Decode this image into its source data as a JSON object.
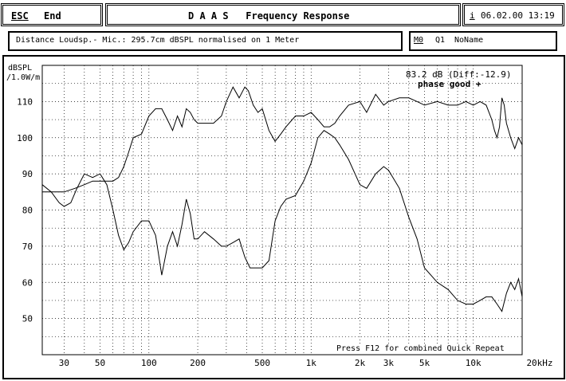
{
  "header": {
    "esc_key": "ESC",
    "end_label": "End",
    "title": "D A A S   Frequency Response",
    "info_key": "i",
    "datetime": "06.02.00 13:19"
  },
  "infobar": {
    "description": "Distance Loudsp.- Mic.: 295.7cm dBSPL normalised on 1 Meter",
    "memory_key": "M0",
    "memory_slot": "Q1",
    "memory_name": "NoName"
  },
  "plot": {
    "ylabel_line1": "dBSPL",
    "ylabel_line2": "/1.0W/m",
    "readout_level": "83.2 dB (Diff:-12.9)",
    "phase_status": "phase good +",
    "hint": "Press F12 for combined Quick Repeat"
  },
  "chart_data": {
    "type": "line",
    "x_scale": "log",
    "xlim": [
      22,
      20000
    ],
    "ylim": [
      40,
      120
    ],
    "y_ticks": [
      50,
      60,
      70,
      80,
      90,
      100,
      110
    ],
    "y_tick_labels": [
      "50",
      "60",
      "70",
      "80",
      "90",
      "100",
      "110"
    ],
    "x_ticks": [
      30,
      50,
      100,
      200,
      500,
      1000,
      2000,
      3000,
      5000,
      10000,
      20000
    ],
    "x_tick_labels": [
      "30",
      "50",
      "100",
      "200",
      "500",
      "1k",
      "2k",
      "3k",
      "5k",
      "10k",
      "20kHz"
    ],
    "grid": true,
    "series": [
      {
        "x": [
          22,
          26,
          30,
          35,
          40,
          45,
          50,
          55,
          60,
          65,
          70,
          75,
          80,
          90,
          100,
          110,
          120,
          130,
          140,
          150,
          160,
          170,
          180,
          190,
          200,
          220,
          250,
          280,
          300,
          330,
          360,
          390,
          410,
          440,
          470,
          500,
          550,
          600,
          650,
          700,
          800,
          900,
          1000,
          1100,
          1200,
          1300,
          1400,
          1500,
          1700,
          2000,
          2200,
          2500,
          2800,
          3000,
          3500,
          4000,
          4500,
          5000,
          6000,
          7000,
          8000,
          9000,
          10000,
          11000,
          12000,
          13000,
          13500,
          14000,
          14500,
          15000,
          15500,
          16000,
          17000,
          18000,
          19000,
          20000
        ],
        "y": [
          85,
          85,
          85,
          86,
          87,
          88,
          88,
          88,
          88,
          89,
          92,
          96,
          100,
          101,
          106,
          108,
          108,
          105,
          102,
          106,
          103,
          108,
          107,
          105,
          104,
          104,
          104,
          106,
          110,
          114,
          111,
          114,
          113,
          109,
          107,
          108,
          102,
          99,
          101,
          103,
          106,
          106,
          107,
          105,
          103,
          103,
          104,
          106,
          109,
          110,
          107,
          112,
          109,
          110,
          111,
          111,
          110,
          109,
          110,
          109,
          109,
          110,
          109,
          110,
          109,
          105,
          102,
          100,
          103,
          111,
          109,
          104,
          100,
          97,
          100,
          98
        ]
      },
      {
        "x": [
          22,
          25,
          28,
          30,
          33,
          36,
          40,
          45,
          50,
          55,
          60,
          65,
          70,
          75,
          80,
          90,
          100,
          110,
          120,
          130,
          140,
          150,
          160,
          170,
          180,
          190,
          200,
          220,
          250,
          280,
          300,
          330,
          360,
          390,
          420,
          450,
          500,
          550,
          600,
          650,
          700,
          800,
          900,
          1000,
          1100,
          1200,
          1300,
          1400,
          1500,
          1700,
          2000,
          2200,
          2500,
          2800,
          3000,
          3500,
          4000,
          4500,
          5000,
          6000,
          7000,
          8000,
          9000,
          10000,
          11000,
          12000,
          13000,
          14000,
          15000,
          16000,
          17000,
          18000,
          19000,
          20000
        ],
        "y": [
          87,
          85,
          82,
          81,
          82,
          86,
          90,
          89,
          90,
          87,
          80,
          73,
          69,
          71,
          74,
          77,
          77,
          73,
          62,
          70,
          74,
          70,
          76,
          83,
          79,
          72,
          72,
          74,
          72,
          70,
          70,
          71,
          72,
          67,
          64,
          64,
          64,
          66,
          77,
          81,
          83,
          84,
          88,
          93,
          100,
          102,
          101,
          100,
          98,
          94,
          87,
          86,
          90,
          92,
          91,
          86,
          78,
          72,
          64,
          60,
          58,
          55,
          54,
          54,
          55,
          56,
          56,
          54,
          52,
          57,
          60,
          58,
          61,
          56
        ]
      }
    ]
  }
}
